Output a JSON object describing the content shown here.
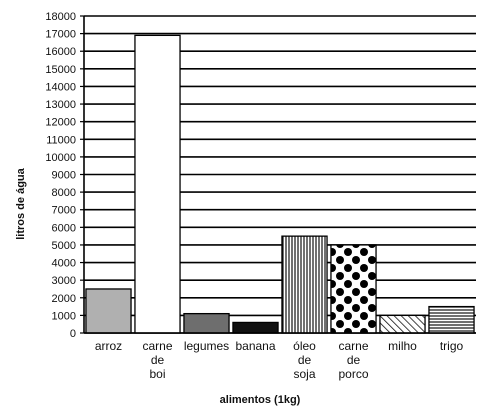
{
  "chart_data": {
    "type": "bar",
    "title": "",
    "xlabel": "alimentos (1kg)",
    "ylabel": "litros de água",
    "ylim": [
      0,
      18000
    ],
    "y_ticks": [
      "0",
      "1000",
      "2000",
      "3000",
      "4000",
      "5000",
      "6000",
      "7000",
      "8000",
      "9000",
      "10000",
      "11000",
      "12000",
      "13000",
      "14000",
      "15000",
      "16000",
      "17000",
      "18000"
    ],
    "grid": true,
    "categories": [
      {
        "label": [
          "arroz"
        ],
        "value": 2500,
        "fill": "#b0b0b0",
        "pattern": "solid"
      },
      {
        "label": [
          "carne",
          "de",
          "boi"
        ],
        "value": 16900,
        "fill": "#ffffff",
        "pattern": "solid"
      },
      {
        "label": [
          "legumes"
        ],
        "value": 1100,
        "fill": "#6e6e6e",
        "pattern": "solid"
      },
      {
        "label": [
          "banana"
        ],
        "value": 600,
        "fill": "#111111",
        "pattern": "solid"
      },
      {
        "label": [
          "óleo",
          "de",
          "soja"
        ],
        "value": 5500,
        "fill": "#ffffff",
        "pattern": "vertical-lines"
      },
      {
        "label": [
          "carne",
          "de",
          "porco"
        ],
        "value": 5000,
        "fill": "#ffffff",
        "pattern": "dots"
      },
      {
        "label": [
          "milho"
        ],
        "value": 1000,
        "fill": "#ffffff",
        "pattern": "diagonal-lines"
      },
      {
        "label": [
          "trigo"
        ],
        "value": 1500,
        "fill": "#ffffff",
        "pattern": "horizontal-lines"
      }
    ]
  }
}
